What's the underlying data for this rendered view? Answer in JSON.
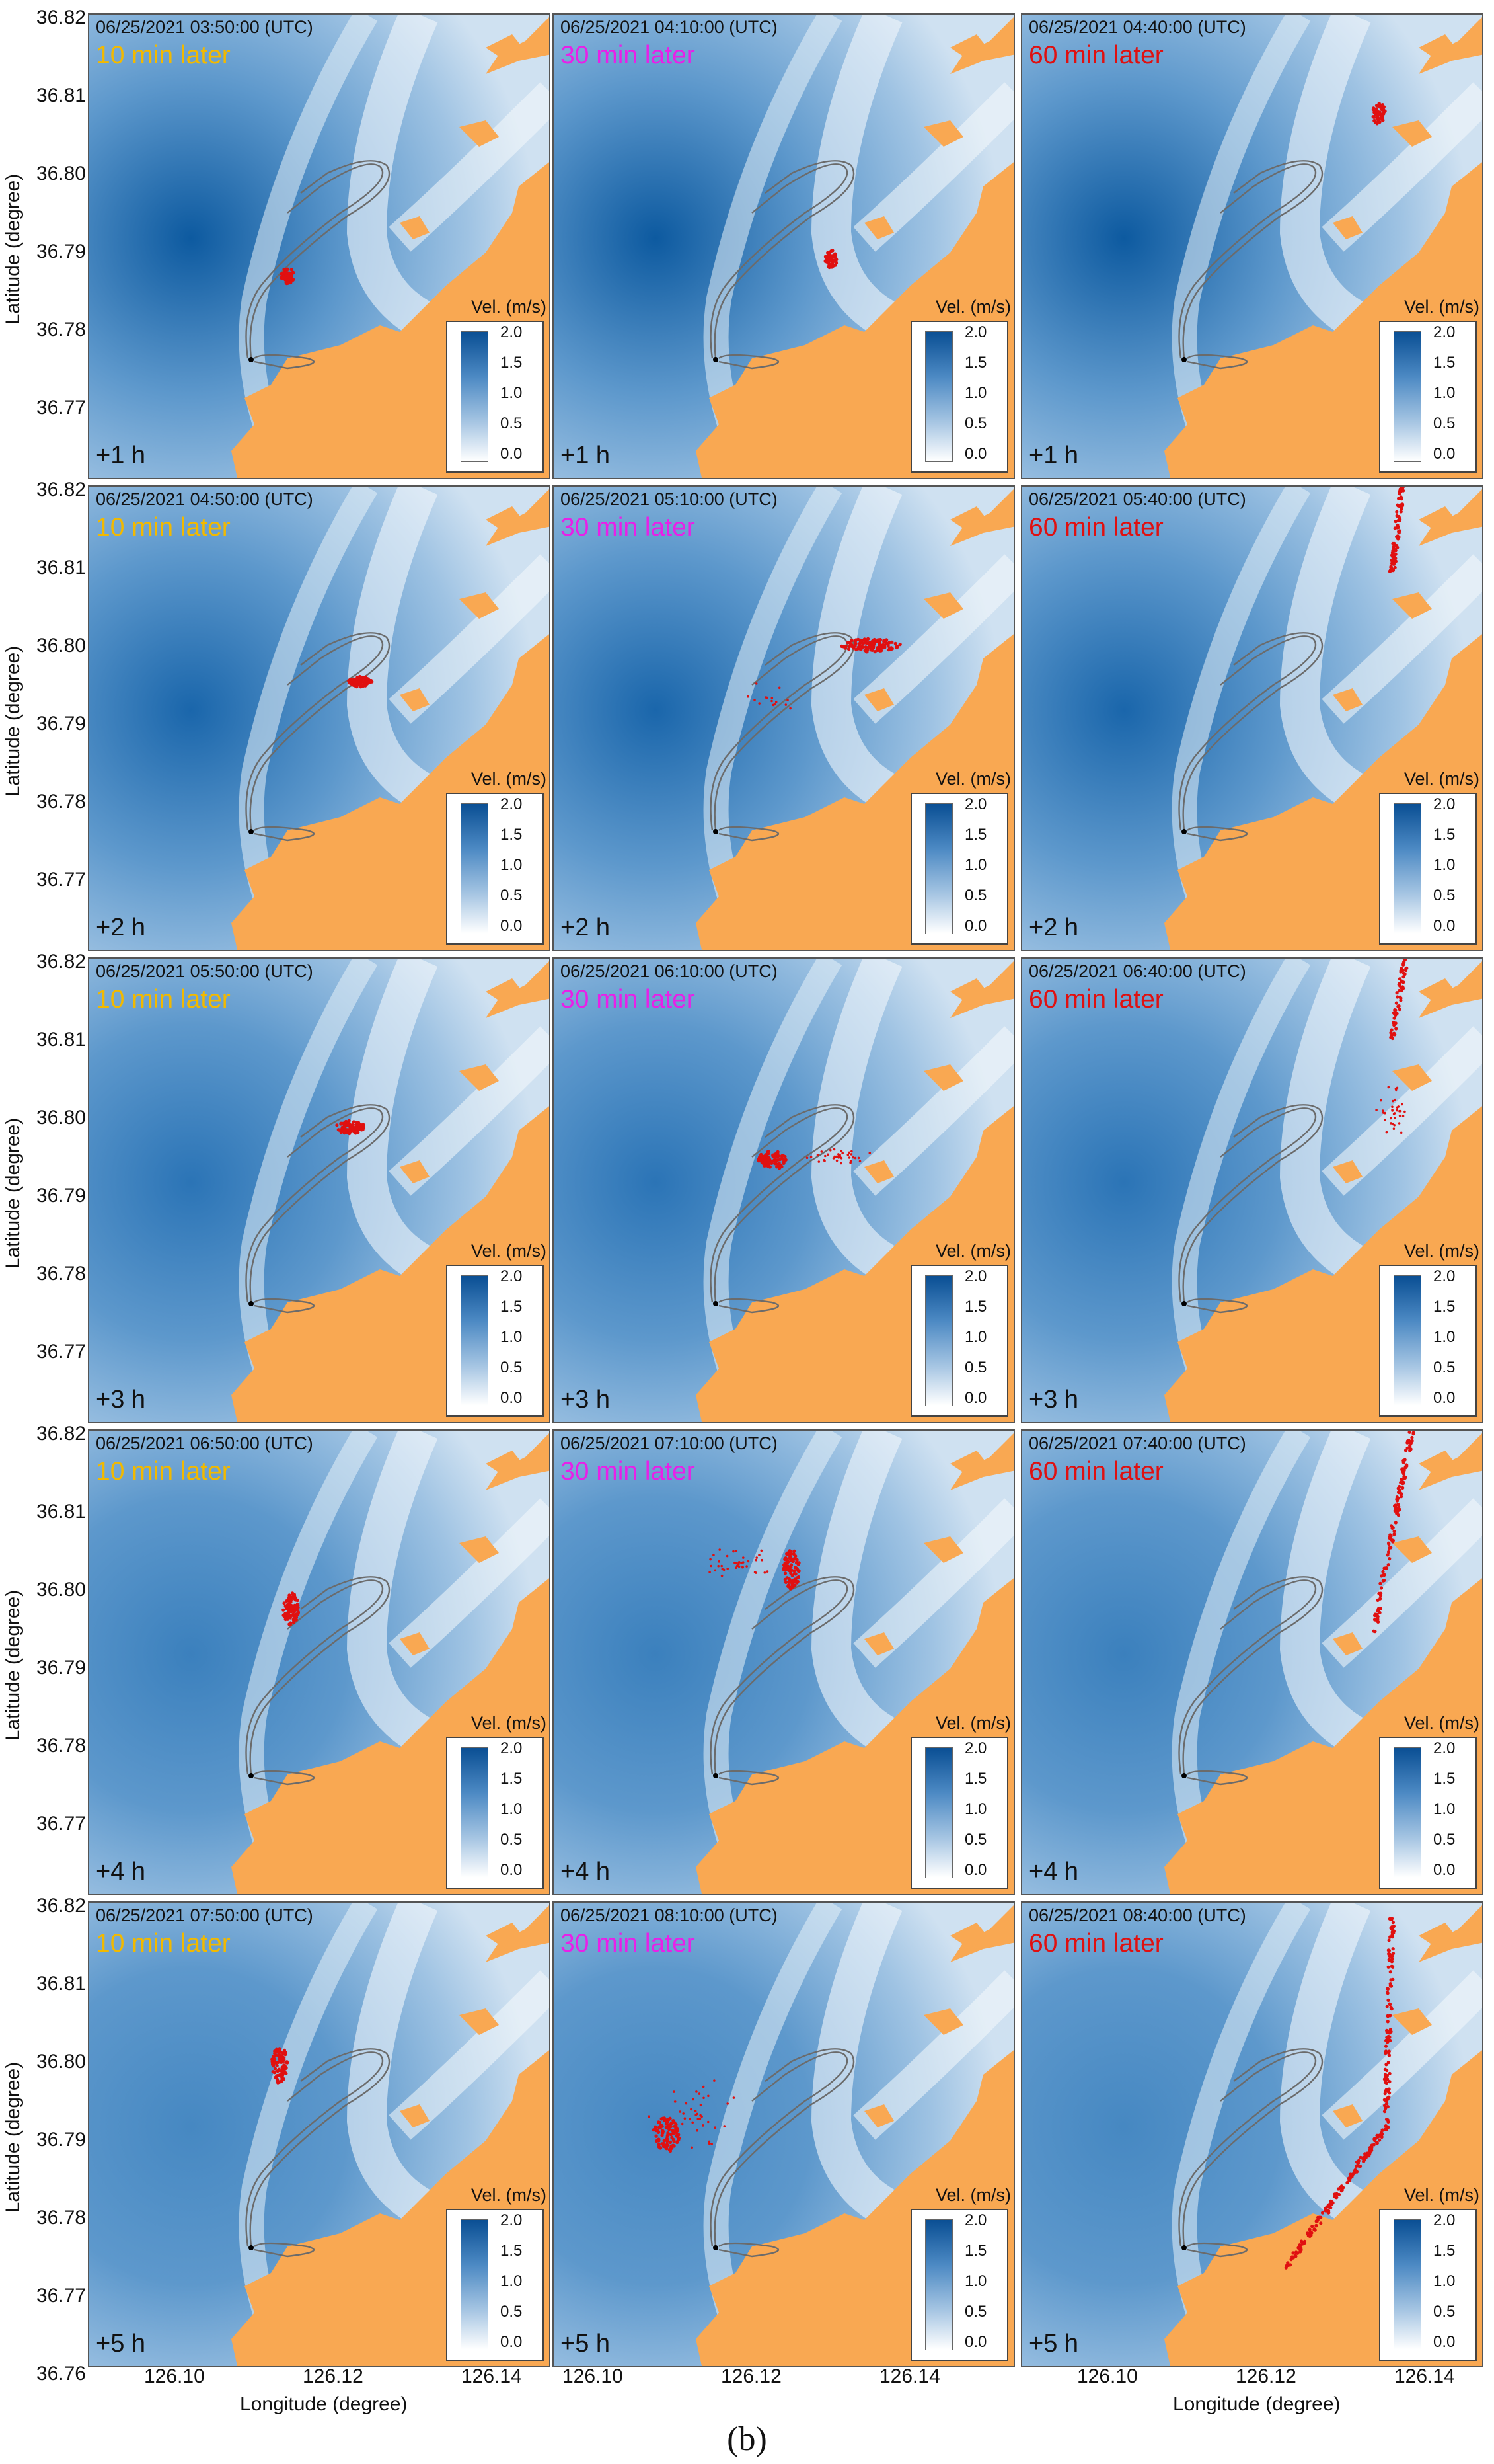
{
  "figure": {
    "caption": "(b)",
    "y_axis_title": "Latitude (degree)",
    "x_axis_title": "Longitude (degree)",
    "y_ticks": [
      "36.82",
      "36.81",
      "36.80",
      "36.79",
      "36.78",
      "36.77",
      "36.76"
    ],
    "x_ticks": [
      "126.10",
      "126.12",
      "126.14"
    ],
    "legend": {
      "title": "Vel. (m/s)",
      "ticks": [
        "2.0",
        "1.5",
        "1.0",
        "0.5",
        "0.0"
      ]
    },
    "colors": {
      "land": "#f9a852",
      "particles": "#e01010",
      "later_10": "#f2b900",
      "later_30": "#e820e8",
      "later_60": "#e01010",
      "velocity_max": "#0a4f94",
      "velocity_min": "#ffffff",
      "tracks": "#6b6b6b"
    },
    "rows": [
      {
        "hour": "+1 h",
        "panels": [
          {
            "time": "06/25/2021 03:50:00 (UTC)",
            "later": "10 min later",
            "later_key": "later_10"
          },
          {
            "time": "06/25/2021 04:10:00 (UTC)",
            "later": "30 min later",
            "later_key": "later_30"
          },
          {
            "time": "06/25/2021 04:40:00 (UTC)",
            "later": "60 min later",
            "later_key": "later_60"
          }
        ]
      },
      {
        "hour": "+2 h",
        "panels": [
          {
            "time": "06/25/2021 04:50:00 (UTC)",
            "later": "10 min later",
            "later_key": "later_10"
          },
          {
            "time": "06/25/2021 05:10:00 (UTC)",
            "later": "30 min later",
            "later_key": "later_30"
          },
          {
            "time": "06/25/2021 05:40:00 (UTC)",
            "later": "60 min later",
            "later_key": "later_60"
          }
        ]
      },
      {
        "hour": "+3 h",
        "panels": [
          {
            "time": "06/25/2021 05:50:00 (UTC)",
            "later": "10 min later",
            "later_key": "later_10"
          },
          {
            "time": "06/25/2021 06:10:00 (UTC)",
            "later": "30 min later",
            "later_key": "later_30"
          },
          {
            "time": "06/25/2021 06:40:00 (UTC)",
            "later": "60 min later",
            "later_key": "later_60"
          }
        ]
      },
      {
        "hour": "+4 h",
        "panels": [
          {
            "time": "06/25/2021 06:50:00 (UTC)",
            "later": "10 min later",
            "later_key": "later_10"
          },
          {
            "time": "06/25/2021 07:10:00 (UTC)",
            "later": "30 min later",
            "later_key": "later_30"
          },
          {
            "time": "06/25/2021 07:40:00 (UTC)",
            "later": "60 min later",
            "later_key": "later_60"
          }
        ]
      },
      {
        "hour": "+5 h",
        "panels": [
          {
            "time": "06/25/2021 07:50:00 (UTC)",
            "later": "10 min later",
            "later_key": "later_10"
          },
          {
            "time": "06/25/2021 08:10:00 (UTC)",
            "later": "30 min later",
            "later_key": "later_30"
          },
          {
            "time": "06/25/2021 08:40:00 (UTC)",
            "later": "60 min later",
            "later_key": "later_60"
          }
        ]
      }
    ]
  }
}
